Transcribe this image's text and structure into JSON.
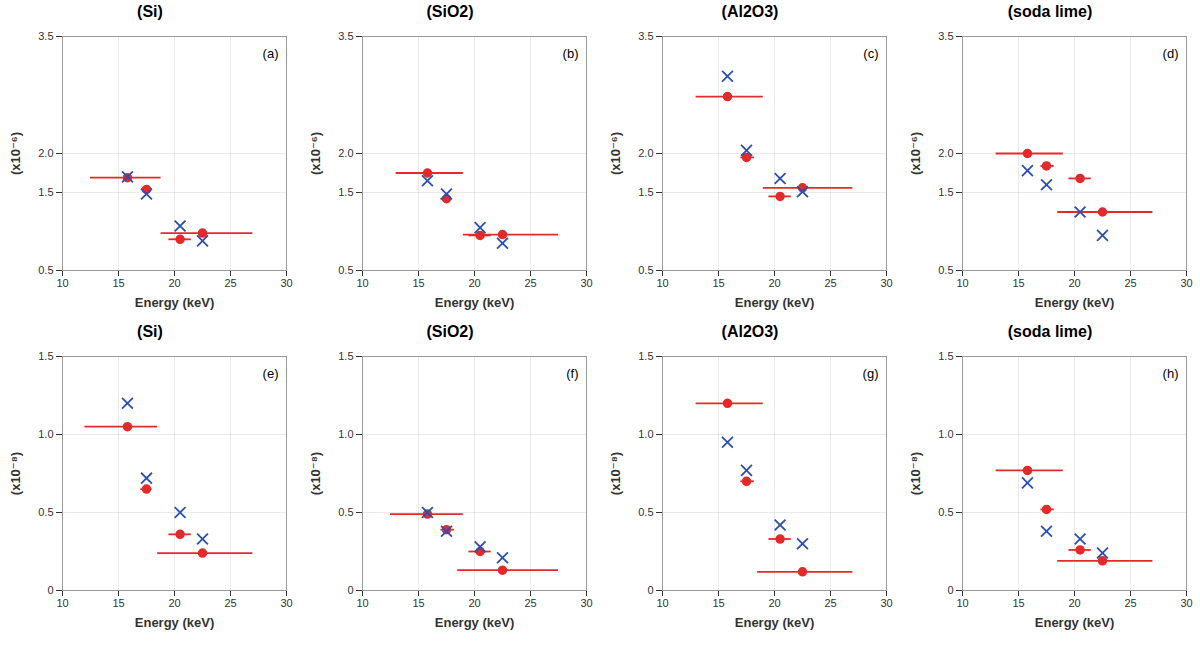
{
  "chart_data": [
    {
      "type": "scatter",
      "title": "(Si)",
      "annotation": "(a)",
      "x_label": "Energy (keV)",
      "y_label": "(x10⁻⁶)",
      "xlim": [
        10,
        30
      ],
      "xticks": [
        10,
        15,
        20,
        25,
        30
      ],
      "ylim": [
        0.5,
        3.5
      ],
      "yticks": [
        0.5,
        1.5,
        {
          "value": 2,
          "label": "2.0"
        },
        3.5
      ],
      "grid": true,
      "x": [
        15.8,
        17.5,
        20.5,
        22.5
      ],
      "series": [
        {
          "color": "#e32a2a",
          "marker": "circle",
          "values": [
            1.69,
            1.54,
            0.9,
            0.98
          ],
          "x_error": [
            [
              12.5,
              18.8
            ],
            [
              17.1,
              18.0
            ],
            [
              19.5,
              21.5
            ],
            [
              18.8,
              27.0
            ]
          ]
        },
        {
          "color": "#2b4fb0",
          "marker": "x",
          "values": [
            1.7,
            1.48,
            1.07,
            0.88
          ]
        }
      ]
    },
    {
      "type": "scatter",
      "title": "(SiO2)",
      "annotation": "(b)",
      "x_label": "Energy (keV)",
      "y_label": "(x10⁻⁶)",
      "xlim": [
        10,
        30
      ],
      "xticks": [
        10,
        15,
        20,
        25,
        30
      ],
      "ylim": [
        0.5,
        3.5
      ],
      "yticks": [
        0.5,
        1.5,
        {
          "value": 2,
          "label": "2.0"
        },
        3.5
      ],
      "grid": true,
      "x": [
        15.8,
        17.5,
        20.5,
        22.5
      ],
      "series": [
        {
          "color": "#e32a2a",
          "marker": "circle",
          "values": [
            1.75,
            1.42,
            0.95,
            0.96
          ],
          "x_error": [
            [
              13.0,
              19.0
            ],
            [
              17.0,
              18.0
            ],
            [
              19.5,
              21.5
            ],
            [
              19.0,
              27.5
            ]
          ]
        },
        {
          "color": "#2b4fb0",
          "marker": "x",
          "values": [
            1.65,
            1.48,
            1.05,
            0.85
          ]
        }
      ]
    },
    {
      "type": "scatter",
      "title": "(Al2O3)",
      "annotation": "(c)",
      "x_label": "Energy (keV)",
      "y_label": "(x10⁻⁶)",
      "xlim": [
        10,
        30
      ],
      "xticks": [
        10,
        15,
        20,
        25,
        30
      ],
      "ylim": [
        0.5,
        3.5
      ],
      "yticks": [
        0.5,
        1.5,
        {
          "value": 2,
          "label": "2.0"
        },
        3.5
      ],
      "grid": true,
      "x": [
        15.8,
        17.5,
        20.5,
        22.5
      ],
      "series": [
        {
          "color": "#e32a2a",
          "marker": "circle",
          "values": [
            2.73,
            1.95,
            1.45,
            1.56
          ],
          "x_error": [
            [
              13.0,
              19.0
            ],
            [
              17.0,
              18.2
            ],
            [
              19.5,
              21.5
            ],
            [
              19.0,
              27.0
            ]
          ]
        },
        {
          "color": "#2b4fb0",
          "marker": "x",
          "values": [
            2.99,
            2.04,
            1.68,
            1.51
          ]
        }
      ]
    },
    {
      "type": "scatter",
      "title": "(soda lime)",
      "annotation": "(d)",
      "x_label": "Energy (keV)",
      "y_label": "(x10⁻⁶)",
      "xlim": [
        10,
        30
      ],
      "xticks": [
        10,
        15,
        20,
        25,
        30
      ],
      "ylim": [
        0.5,
        3.5
      ],
      "yticks": [
        0.5,
        1.5,
        {
          "value": 2,
          "label": "2.0"
        },
        3.5
      ],
      "grid": true,
      "x": [
        15.8,
        17.5,
        20.5,
        22.5
      ],
      "series": [
        {
          "color": "#e32a2a",
          "marker": "circle",
          "values": [
            2.0,
            1.84,
            1.68,
            1.25
          ],
          "x_error": [
            [
              13.0,
              19.0
            ],
            [
              17.0,
              18.2
            ],
            [
              19.5,
              21.5
            ],
            [
              18.5,
              27.0
            ]
          ]
        },
        {
          "color": "#2b4fb0",
          "marker": "x",
          "values": [
            1.78,
            1.6,
            1.25,
            0.95
          ]
        }
      ]
    },
    {
      "type": "scatter",
      "title": "(Si)",
      "annotation": "(e)",
      "x_label": "Energy (keV)",
      "y_label": "(x10⁻⁸)",
      "xlim": [
        10,
        30
      ],
      "xticks": [
        10,
        15,
        20,
        25,
        30
      ],
      "ylim": [
        0,
        1.5
      ],
      "yticks": [
        0,
        0.5,
        {
          "value": 1,
          "label": "1.0"
        },
        1.5
      ],
      "grid": true,
      "x": [
        15.8,
        17.5,
        20.5,
        22.5
      ],
      "series": [
        {
          "color": "#e32a2a",
          "marker": "circle",
          "values": [
            1.05,
            0.65,
            0.36,
            0.24
          ],
          "x_error": [
            [
              12.0,
              18.5
            ],
            [
              17.0,
              18.0
            ],
            [
              19.5,
              21.5
            ],
            [
              18.5,
              27.0
            ]
          ]
        },
        {
          "color": "#2b4fb0",
          "marker": "x",
          "values": [
            1.2,
            0.72,
            0.5,
            0.33
          ]
        }
      ]
    },
    {
      "type": "scatter",
      "title": "(SiO2)",
      "annotation": "(f)",
      "x_label": "Energy (keV)",
      "y_label": "(x10⁻⁸)",
      "xlim": [
        10,
        30
      ],
      "xticks": [
        10,
        15,
        20,
        25,
        30
      ],
      "ylim": [
        0,
        1.5
      ],
      "yticks": [
        0,
        0.5,
        {
          "value": 1,
          "label": "1.0"
        },
        1.5
      ],
      "grid": true,
      "x": [
        15.8,
        17.5,
        20.5,
        22.5
      ],
      "series": [
        {
          "color": "#e32a2a",
          "marker": "circle",
          "values": [
            0.49,
            0.39,
            0.25,
            0.13
          ],
          "x_error": [
            [
              12.5,
              19.0
            ],
            [
              17.0,
              18.2
            ],
            [
              19.5,
              21.5
            ],
            [
              18.5,
              27.5
            ]
          ]
        },
        {
          "color": "#2b4fb0",
          "marker": "x",
          "values": [
            0.5,
            0.38,
            0.28,
            0.21
          ]
        }
      ]
    },
    {
      "type": "scatter",
      "title": "(Al2O3)",
      "annotation": "(g)",
      "x_label": "Energy (keV)",
      "y_label": "(x10⁻⁸)",
      "xlim": [
        10,
        30
      ],
      "xticks": [
        10,
        15,
        20,
        25,
        30
      ],
      "ylim": [
        0,
        1.5
      ],
      "yticks": [
        0,
        0.5,
        {
          "value": 1,
          "label": "1.0"
        },
        1.5
      ],
      "grid": true,
      "x": [
        15.8,
        17.5,
        20.5,
        22.5
      ],
      "series": [
        {
          "color": "#e32a2a",
          "marker": "circle",
          "values": [
            1.2,
            0.7,
            0.33,
            0.12
          ],
          "x_error": [
            [
              13.0,
              19.0
            ],
            [
              17.0,
              18.2
            ],
            [
              19.5,
              21.5
            ],
            [
              18.5,
              27.0
            ]
          ]
        },
        {
          "color": "#2b4fb0",
          "marker": "x",
          "values": [
            0.95,
            0.77,
            0.42,
            0.3
          ]
        }
      ]
    },
    {
      "type": "scatter",
      "title": "(soda lime)",
      "annotation": "(h)",
      "x_label": "Energy (keV)",
      "y_label": "(x10⁻⁸)",
      "xlim": [
        10,
        30
      ],
      "xticks": [
        10,
        15,
        20,
        25,
        30
      ],
      "ylim": [
        0,
        1.5
      ],
      "yticks": [
        0,
        0.5,
        {
          "value": 1,
          "label": "1.0"
        },
        1.5
      ],
      "grid": true,
      "x": [
        15.8,
        17.5,
        20.5,
        22.5
      ],
      "series": [
        {
          "color": "#e32a2a",
          "marker": "circle",
          "values": [
            0.77,
            0.52,
            0.26,
            0.19
          ],
          "x_error": [
            [
              13.0,
              19.0
            ],
            [
              17.0,
              18.2
            ],
            [
              19.5,
              21.5
            ],
            [
              18.5,
              27.0
            ]
          ]
        },
        {
          "color": "#2b4fb0",
          "marker": "x",
          "values": [
            0.69,
            0.38,
            0.33,
            0.24
          ]
        }
      ]
    }
  ]
}
